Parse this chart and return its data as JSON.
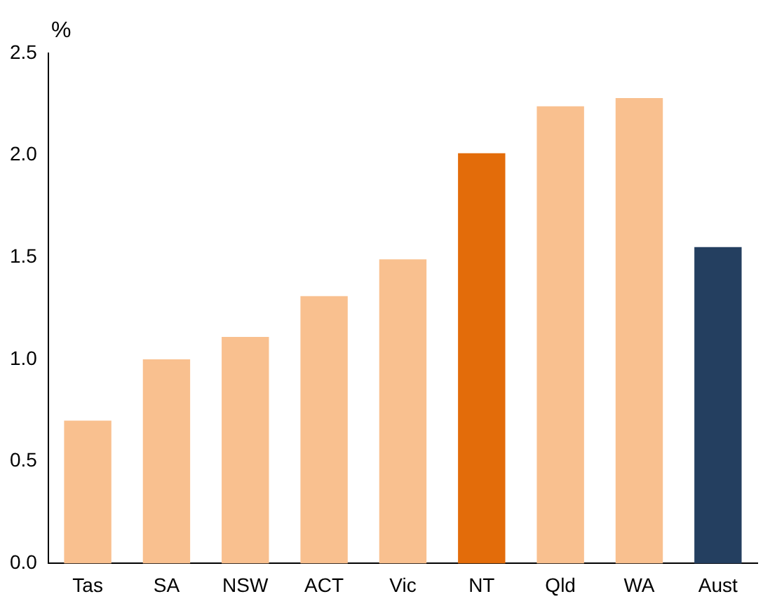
{
  "chart_data": {
    "type": "bar",
    "ylabel": "%",
    "categories": [
      "Tas",
      "SA",
      "NSW",
      "ACT",
      "Vic",
      "NT",
      "Qld",
      "WA",
      "Aust"
    ],
    "values": [
      0.7,
      1.0,
      1.11,
      1.31,
      1.49,
      2.01,
      2.24,
      2.28,
      1.55
    ],
    "colors": [
      "#f9c08f",
      "#f9c08f",
      "#f9c08f",
      "#f9c08f",
      "#f9c08f",
      "#e36c0a",
      "#f9c08f",
      "#f9c08f",
      "#243f60"
    ],
    "ylim": [
      0,
      2.5
    ],
    "yticks": [
      {
        "value": 0,
        "label": "0.0"
      },
      {
        "value": 0.5,
        "label": "0.5"
      },
      {
        "value": 1,
        "label": "1.0"
      },
      {
        "value": 1.5,
        "label": "1.5"
      },
      {
        "value": 2,
        "label": "2.0"
      },
      {
        "value": 2.5,
        "label": "2.5"
      }
    ],
    "grid": false,
    "legend": false
  }
}
